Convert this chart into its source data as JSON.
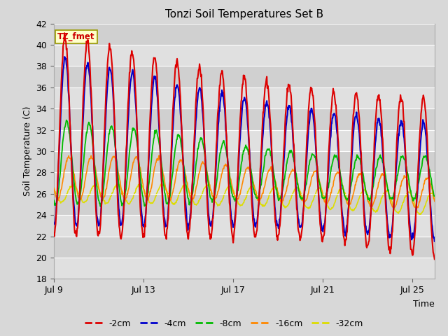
{
  "title": "Tonzi Soil Temperatures Set B",
  "xlabel": "Time",
  "ylabel": "Soil Temperature (C)",
  "ylim": [
    18,
    42
  ],
  "yticks": [
    18,
    20,
    22,
    24,
    26,
    28,
    30,
    32,
    34,
    36,
    38,
    40,
    42
  ],
  "xtick_labels": [
    "Jul 9",
    "Jul 13",
    "Jul 17",
    "Jul 21",
    "Jul 25"
  ],
  "xtick_positions": [
    0,
    4,
    8,
    12,
    16
  ],
  "xlim": [
    0,
    17
  ],
  "annotation": "TZ_fmet",
  "annotation_bg": "#ffffcc",
  "annotation_border": "#999900",
  "colors": {
    "-2cm": "#dd0000",
    "-4cm": "#0000cc",
    "-8cm": "#00bb00",
    "-16cm": "#ff8800",
    "-32cm": "#dddd00"
  },
  "bg_color": "#d8d8d8",
  "plot_bg": "#e8e8e8",
  "band_colors": [
    "#e0e0e0",
    "#d0d0d0"
  ],
  "n_days": 17,
  "n_per_day": 48
}
